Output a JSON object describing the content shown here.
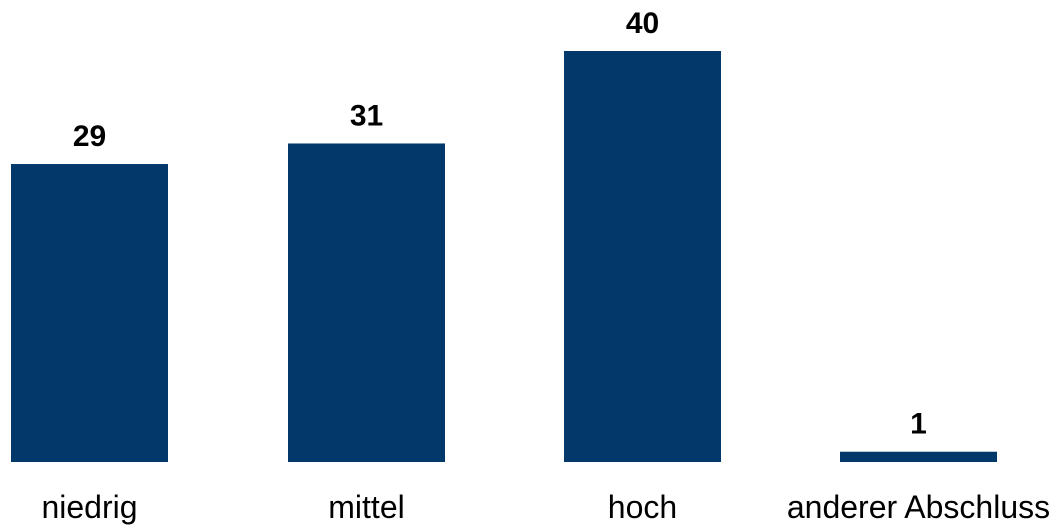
{
  "chart_data": {
    "type": "bar",
    "categories": [
      "niedrig",
      "mittel",
      "hoch",
      "anderer Abschluss"
    ],
    "values": [
      29,
      31,
      40,
      1
    ],
    "data_labels": [
      "29",
      "31",
      "40",
      "1"
    ],
    "title": "",
    "xlabel": "",
    "ylabel": "",
    "ylim": [
      0,
      40
    ],
    "grid": false,
    "legend": "none",
    "bar_color": "#03386A"
  }
}
